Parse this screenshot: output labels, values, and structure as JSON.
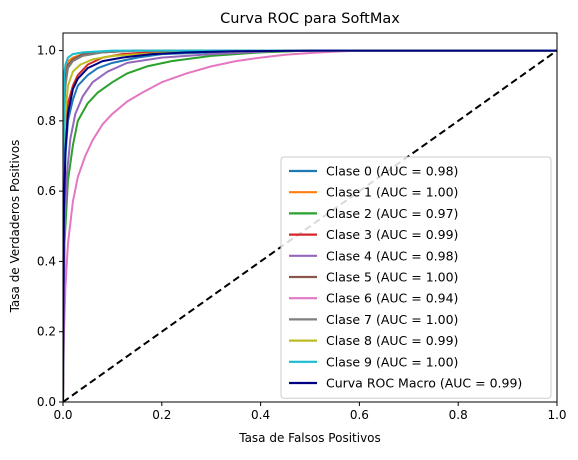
{
  "chart_data": {
    "type": "line",
    "title": "Curva ROC para SoftMax",
    "xlabel": "Tasa de Falsos Positivos",
    "ylabel": "Tasa de Verdaderos Positivos",
    "xlim": [
      0,
      1
    ],
    "ylim": [
      0,
      1.05
    ],
    "xticks": [
      0,
      0.2,
      0.4,
      0.6,
      0.8,
      1
    ],
    "yticks": [
      0,
      0.2,
      0.4,
      0.6,
      0.8,
      1
    ],
    "xtick_labels": [
      "0.0",
      "0.2",
      "0.4",
      "0.6",
      "0.8",
      "1.0"
    ],
    "ytick_labels": [
      "0.0",
      "0.2",
      "0.4",
      "0.6",
      "0.8",
      "1.0"
    ],
    "grid": false,
    "legend_position": "lower-right",
    "series": [
      {
        "name": "Clase 0 (AUC = 0.98)",
        "color": "#1f77b4",
        "x": [
          0,
          0.002,
          0.005,
          0.01,
          0.02,
          0.03,
          0.05,
          0.07,
          0.1,
          0.15,
          0.2,
          0.3,
          0.4,
          1
        ],
        "y": [
          0,
          0.55,
          0.7,
          0.8,
          0.86,
          0.9,
          0.93,
          0.95,
          0.965,
          0.98,
          0.99,
          0.995,
          1,
          1
        ]
      },
      {
        "name": "Clase 1 (AUC = 1.00)",
        "color": "#ff7f0e",
        "x": [
          0,
          0.002,
          0.005,
          0.01,
          0.02,
          0.04,
          0.08,
          0.15,
          1
        ],
        "y": [
          0,
          0.9,
          0.95,
          0.97,
          0.98,
          0.99,
          0.995,
          1,
          1
        ]
      },
      {
        "name": "Clase 2 (AUC = 0.97)",
        "color": "#2ca02c",
        "x": [
          0,
          0.003,
          0.01,
          0.02,
          0.03,
          0.05,
          0.07,
          0.1,
          0.13,
          0.17,
          0.22,
          0.3,
          0.4,
          0.5,
          1
        ],
        "y": [
          0,
          0.45,
          0.63,
          0.73,
          0.8,
          0.85,
          0.88,
          0.91,
          0.935,
          0.955,
          0.97,
          0.985,
          0.995,
          1,
          1
        ]
      },
      {
        "name": "Clase 3 (AUC = 0.99)",
        "color": "#d62728",
        "x": [
          0,
          0.002,
          0.005,
          0.01,
          0.02,
          0.03,
          0.05,
          0.08,
          0.12,
          0.2,
          0.3,
          1
        ],
        "y": [
          0,
          0.6,
          0.75,
          0.85,
          0.9,
          0.93,
          0.96,
          0.98,
          0.99,
          0.997,
          1,
          1
        ]
      },
      {
        "name": "Clase 4 (AUC = 0.98)",
        "color": "#9467bd",
        "x": [
          0,
          0.003,
          0.008,
          0.015,
          0.025,
          0.04,
          0.06,
          0.09,
          0.13,
          0.2,
          0.3,
          0.45,
          1
        ],
        "y": [
          0,
          0.5,
          0.65,
          0.75,
          0.82,
          0.87,
          0.91,
          0.94,
          0.965,
          0.98,
          0.99,
          1,
          1
        ]
      },
      {
        "name": "Clase 5 (AUC = 1.00)",
        "color": "#8c564b",
        "x": [
          0,
          0.002,
          0.005,
          0.01,
          0.02,
          0.04,
          0.08,
          0.15,
          1
        ],
        "y": [
          0,
          0.85,
          0.93,
          0.96,
          0.975,
          0.99,
          0.995,
          1,
          1
        ]
      },
      {
        "name": "Clase 6 (AUC = 0.94)",
        "color": "#e377c2",
        "x": [
          0,
          0.002,
          0.005,
          0.01,
          0.02,
          0.03,
          0.045,
          0.06,
          0.08,
          0.1,
          0.13,
          0.16,
          0.2,
          0.25,
          0.3,
          0.35,
          0.4,
          0.45,
          0.5,
          0.55,
          0.6,
          1
        ],
        "y": [
          0,
          0.2,
          0.33,
          0.45,
          0.57,
          0.64,
          0.7,
          0.745,
          0.79,
          0.82,
          0.855,
          0.88,
          0.91,
          0.935,
          0.955,
          0.97,
          0.98,
          0.988,
          0.993,
          0.997,
          1,
          1
        ]
      },
      {
        "name": "Clase 7 (AUC = 1.00)",
        "color": "#7f7f7f",
        "x": [
          0,
          0.002,
          0.005,
          0.01,
          0.02,
          0.04,
          0.08,
          0.15,
          1
        ],
        "y": [
          0,
          0.82,
          0.9,
          0.95,
          0.97,
          0.985,
          0.995,
          1,
          1
        ]
      },
      {
        "name": "Clase 8 (AUC = 0.99)",
        "color": "#bcbd22",
        "x": [
          0,
          0.002,
          0.005,
          0.01,
          0.02,
          0.035,
          0.06,
          0.1,
          0.2,
          0.3,
          0.45,
          1
        ],
        "y": [
          0,
          0.7,
          0.82,
          0.9,
          0.94,
          0.96,
          0.975,
          0.985,
          0.993,
          0.997,
          1,
          1
        ]
      },
      {
        "name": "Clase 9 (AUC = 1.00)",
        "color": "#17becf",
        "x": [
          0,
          0.002,
          0.005,
          0.01,
          0.02,
          0.04,
          0.1,
          1
        ],
        "y": [
          0,
          0.93,
          0.96,
          0.98,
          0.99,
          0.995,
          1,
          1
        ]
      },
      {
        "name": "Curva ROC Macro (AUC = 0.99)",
        "color": "#000080",
        "x": [
          0,
          0.002,
          0.005,
          0.01,
          0.02,
          0.03,
          0.05,
          0.08,
          0.12,
          0.18,
          0.25,
          0.35,
          0.5,
          1
        ],
        "y": [
          0,
          0.55,
          0.72,
          0.82,
          0.89,
          0.92,
          0.95,
          0.97,
          0.98,
          0.99,
          0.995,
          0.998,
          1,
          1
        ]
      }
    ],
    "reference_line": {
      "x": [
        0,
        1
      ],
      "y": [
        0,
        1
      ],
      "color": "#000000",
      "style": "dashed"
    }
  }
}
